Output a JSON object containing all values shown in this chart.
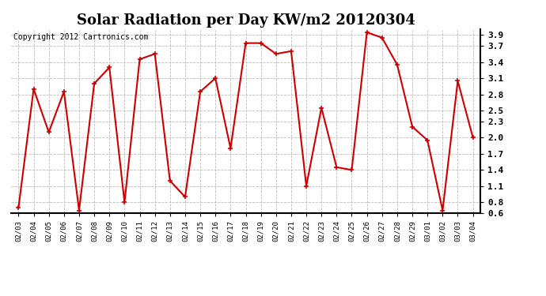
{
  "title": "Solar Radiation per Day KW/m2 20120304",
  "copyright": "Copyright 2012 Cartronics.com",
  "dates": [
    "02/03",
    "02/04",
    "02/05",
    "02/06",
    "02/07",
    "02/08",
    "02/09",
    "02/10",
    "02/11",
    "02/12",
    "02/13",
    "02/14",
    "02/15",
    "02/16",
    "02/17",
    "02/18",
    "02/19",
    "02/20",
    "02/21",
    "02/22",
    "02/23",
    "02/24",
    "02/25",
    "02/26",
    "02/27",
    "02/28",
    "02/29",
    "03/01",
    "03/02",
    "03/03",
    "03/04"
  ],
  "values": [
    0.7,
    2.9,
    2.1,
    2.85,
    0.65,
    3.0,
    3.3,
    0.8,
    3.45,
    3.55,
    1.2,
    0.9,
    2.85,
    3.1,
    1.8,
    3.75,
    3.75,
    3.55,
    3.6,
    1.1,
    2.55,
    1.45,
    1.4,
    3.95,
    3.85,
    3.35,
    2.2,
    1.95,
    0.65,
    3.05,
    2.0
  ],
  "line_color": "#cc0000",
  "marker": "+",
  "marker_size": 5,
  "marker_linewidth": 1.2,
  "line_width": 1.5,
  "ylim": [
    0.6,
    4.0
  ],
  "yticks": [
    0.6,
    0.8,
    1.1,
    1.4,
    1.7,
    2.0,
    2.3,
    2.5,
    2.8,
    3.1,
    3.4,
    3.7,
    3.9
  ],
  "bg_color": "#ffffff",
  "grid_color": "#bbbbbb",
  "title_fontsize": 13,
  "copyright_fontsize": 7,
  "xtick_fontsize": 6.5,
  "ytick_fontsize": 8
}
